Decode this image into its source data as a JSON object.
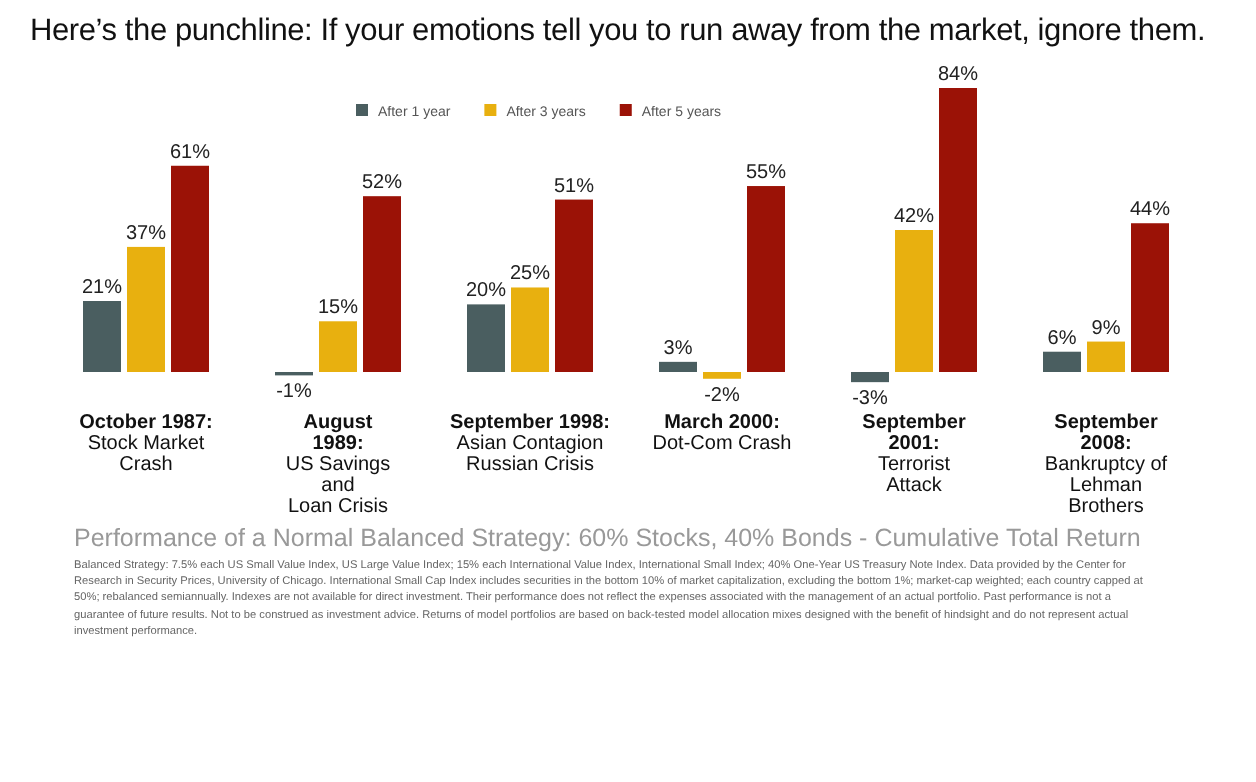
{
  "chart_data": {
    "type": "bar",
    "title": "Here’s the punchline: If your emotions tell you to run away from the market, ignore them.",
    "categories": [
      "October 1987:\nStock Market\nCrash",
      "August\n1989:\nUS Savings\nand\nLoan Crisis",
      "September 1998:\nAsian Contagion\nRussian Crisis",
      "March 2000:\nDot-Com Crash",
      "September\n2001:\nTerrorist\nAttack",
      "September\n2008:\nBankruptcy of\nLehman\nBrothers"
    ],
    "series": [
      {
        "name": "After 1 year",
        "color": "#4a5e60",
        "values": [
          21,
          -1,
          20,
          3,
          -3,
          6
        ],
        "value_labels": [
          "21%",
          "-1%",
          "20%",
          "3%",
          "-3%",
          "6%"
        ]
      },
      {
        "name": "After 3 years",
        "color": "#e8b00f",
        "values": [
          37,
          15,
          25,
          -2,
          42,
          9
        ],
        "value_labels": [
          "37%",
          "15%",
          "25%",
          "-2%",
          "42%",
          "9%"
        ]
      },
      {
        "name": "After 5 years",
        "color": "#9b1206",
        "values": [
          61,
          52,
          51,
          55,
          84,
          44
        ],
        "value_labels": [
          "61%",
          "52%",
          "51%",
          "55%",
          "84%",
          "44%"
        ]
      }
    ],
    "legend": "top",
    "annotations": [
      "Performance of a Normal Balanced Strategy: 60% Stocks, 40% Bonds - Cumulative Total Return",
      "Balanced Strategy: 7.5% each US Small Value Index, US Large Value Index; 15% each International Value Index, International Small Index; 40% One-Year US Treasury Note Index. Data provided by the Center for Research in Security Prices, University of Chicago. International Small Cap Index includes securities in the bottom 10% of market capitalization, excluding the bottom 1%; market-cap weighted; each country capped at 50%; rebalanced semiannually. Indexes are not available for direct investment. Their performance does not reflect the expenses associated with the management of an actual portfolio. Past performance is not a guarantee of future results. Not to be construed as investment advice. Returns of model portfolios are based on back-tested model allocation mixes designed with the benefit of hindsight and do not represent actual investment performance."
    ]
  }
}
